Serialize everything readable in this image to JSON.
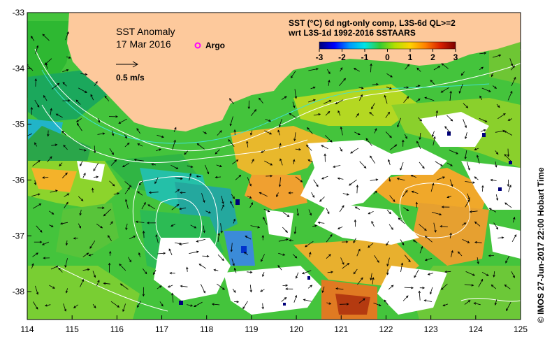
{
  "map": {
    "title": "SST Anomaly",
    "date": "17 Mar 2016",
    "argo_label": "Argo",
    "velocity_label": "0.5 m/s",
    "product_line1": "SST (°C) 6d ngt-only comp, L3S-6d QL>=2",
    "product_line2": "wrt L3S-1d 1992-2016 SSTAARS",
    "credit": "© IMOS 27-Jun-2017 22:00 Hobart Time",
    "land_color": "#fdc99c",
    "argo_color": "#ff00ff"
  },
  "colorbar": {
    "ticks": [
      "-3",
      "-2",
      "-1",
      "0",
      "1",
      "2",
      "3"
    ],
    "min": -3,
    "max": 3,
    "colors": [
      "#00007a",
      "#0000ff",
      "#0099ff",
      "#00e5e5",
      "#33cc33",
      "#b3e000",
      "#ffd200",
      "#ff8000",
      "#d92000",
      "#7a0000"
    ]
  },
  "axes": {
    "lon_min": 114,
    "lon_max": 125,
    "lat_min": -38.5,
    "lat_max": -33,
    "x_ticks": [
      "114",
      "115",
      "116",
      "117",
      "118",
      "119",
      "120",
      "121",
      "122",
      "123",
      "124",
      "125"
    ],
    "y_ticks": [
      "-33",
      "-34",
      "-35",
      "-36",
      "-37",
      "-38"
    ]
  }
}
